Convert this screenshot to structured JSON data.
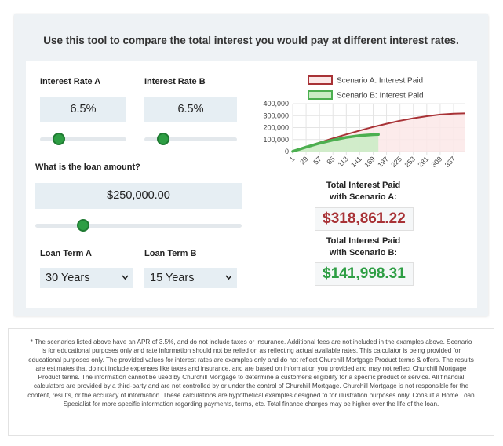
{
  "header": {
    "title": "Use this tool to compare the total interest you would pay at different interest rates."
  },
  "inputs": {
    "rate_a": {
      "label": "Interest Rate A",
      "value": "6.5%"
    },
    "rate_b": {
      "label": "Interest Rate B",
      "value": "6.5%"
    },
    "loan_amount": {
      "label": "What is the loan amount?",
      "value": "$250,000.00"
    },
    "term_a": {
      "label": "Loan Term A",
      "value": "30 Years"
    },
    "term_b": {
      "label": "Loan Term B",
      "value": "15 Years"
    }
  },
  "chart_data": {
    "type": "area",
    "x": [
      1,
      29,
      57,
      85,
      113,
      141,
      169,
      180,
      197,
      225,
      253,
      281,
      309,
      337,
      360
    ],
    "xlim": [
      1,
      360
    ],
    "xticks": [
      1,
      29,
      57,
      85,
      113,
      141,
      169,
      197,
      225,
      253,
      281,
      309,
      337
    ],
    "ylim": [
      0,
      400000
    ],
    "yticks": [
      0,
      {
        "value": 100000,
        "label": "100,000"
      },
      {
        "value": 200000,
        "label": "200,000"
      },
      {
        "value": 300000,
        "label": "300,000"
      },
      {
        "value": 400000,
        "label": "400,000"
      }
    ],
    "grid": true,
    "legend": "top",
    "series": [
      {
        "name": "Scenario A: Interest Paid",
        "color": "#a83236",
        "fill": "#fbe8e8",
        "values": [
          1000,
          39000,
          75000,
          110000,
          143000,
          175000,
          205000,
          216000,
          232000,
          257000,
          278000,
          295000,
          309000,
          317000,
          319000
        ]
      },
      {
        "name": "Scenario B: Interest Paid",
        "color": "#4caf50",
        "fill": "#c9ecc4",
        "values": [
          1000,
          37000,
          69000,
          96000,
          118000,
          133000,
          141000,
          142000,
          null,
          null,
          null,
          null,
          null,
          null,
          null
        ]
      }
    ]
  },
  "results": {
    "a": {
      "title_line1": "Total Interest Paid",
      "title_line2": "with Scenario A:",
      "value": "$318,861.22"
    },
    "b": {
      "title_line1": "Total Interest Paid",
      "title_line2": "with Scenario B:",
      "value": "$141,998.31"
    }
  },
  "disclaimer": "* The scenarios listed above have an APR of 3.5%, and do not include taxes or insurance. Additional fees are not included in the examples above. Scenario is for educational purposes only and rate information should not be relied on as reflecting actual available rates. This calculator is being provided for educational purposes only. The provided values for interest rates are examples only and do not reflect Churchill Mortgage Product terms & offers. The results are estimates that do not include expenses like taxes and insurance, and are based on information you provided and may not reflect Churchill Mortgage Product terms. The information cannot be used by Churchill Mortgage to determine a customer's eligibility for a specific product or service. All financial calculators are provided by a third-party and are not controlled by or under the control of Churchill Mortgage. Churchill Mortgage is not responsible for the content, results, or the accuracy of information. These calculations are hypothetical examples designed to for illustration purposes only. Consult a Home Loan Specialist for more specific information regarding payments, terms, etc. Total finance charges may be higher over the life of the loan."
}
